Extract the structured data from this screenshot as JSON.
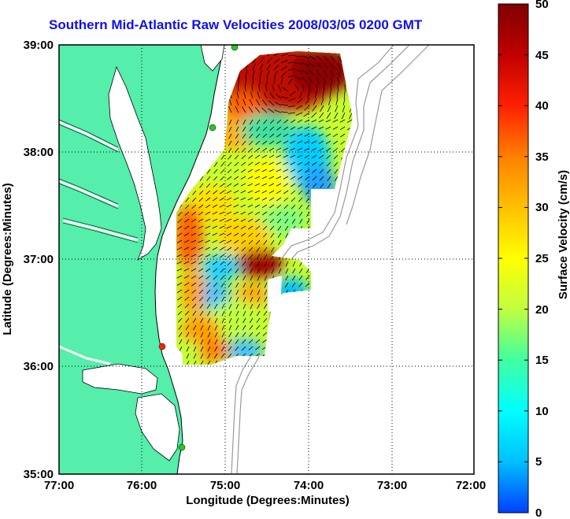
{
  "title": "Southern Mid-Atlantic Raw Velocities 2008/03/05 0200 GMT",
  "x_axis": {
    "label": "Longitude (Degrees:Minutes)",
    "ticks": [
      "77:00",
      "76:00",
      "75:00",
      "74:00",
      "73:00",
      "72:00"
    ]
  },
  "y_axis": {
    "label": "Latitude (Degrees:Minutes)",
    "ticks": [
      "39:00",
      "38:00",
      "37:00",
      "36:00",
      "35:00"
    ]
  },
  "colorbar": {
    "label": "Surface Velocity (cm/s)",
    "ticks": [
      "50",
      "45",
      "40",
      "35",
      "30",
      "25",
      "20",
      "15",
      "10",
      "5",
      "0"
    ],
    "min": 0,
    "max": 50,
    "colormap": [
      "#0040ff",
      "#00bfff",
      "#00ffff",
      "#40ffa0",
      "#c0ff40",
      "#ffff00",
      "#ffc000",
      "#ff8000",
      "#ff2000",
      "#c00000",
      "#800000"
    ]
  },
  "colors": {
    "land": "#55eeaa",
    "contour": "#999999",
    "coast": "#000000"
  },
  "map_extent": {
    "lon_min": -77,
    "lon_max": -72,
    "lat_min": 35,
    "lat_max": 39
  },
  "grid": "dotted",
  "stations": [
    {
      "color": "#22cc22"
    },
    {
      "color": "#22cc22"
    },
    {
      "color": "#ff2200"
    },
    {
      "color": "#22cc22"
    }
  ]
}
